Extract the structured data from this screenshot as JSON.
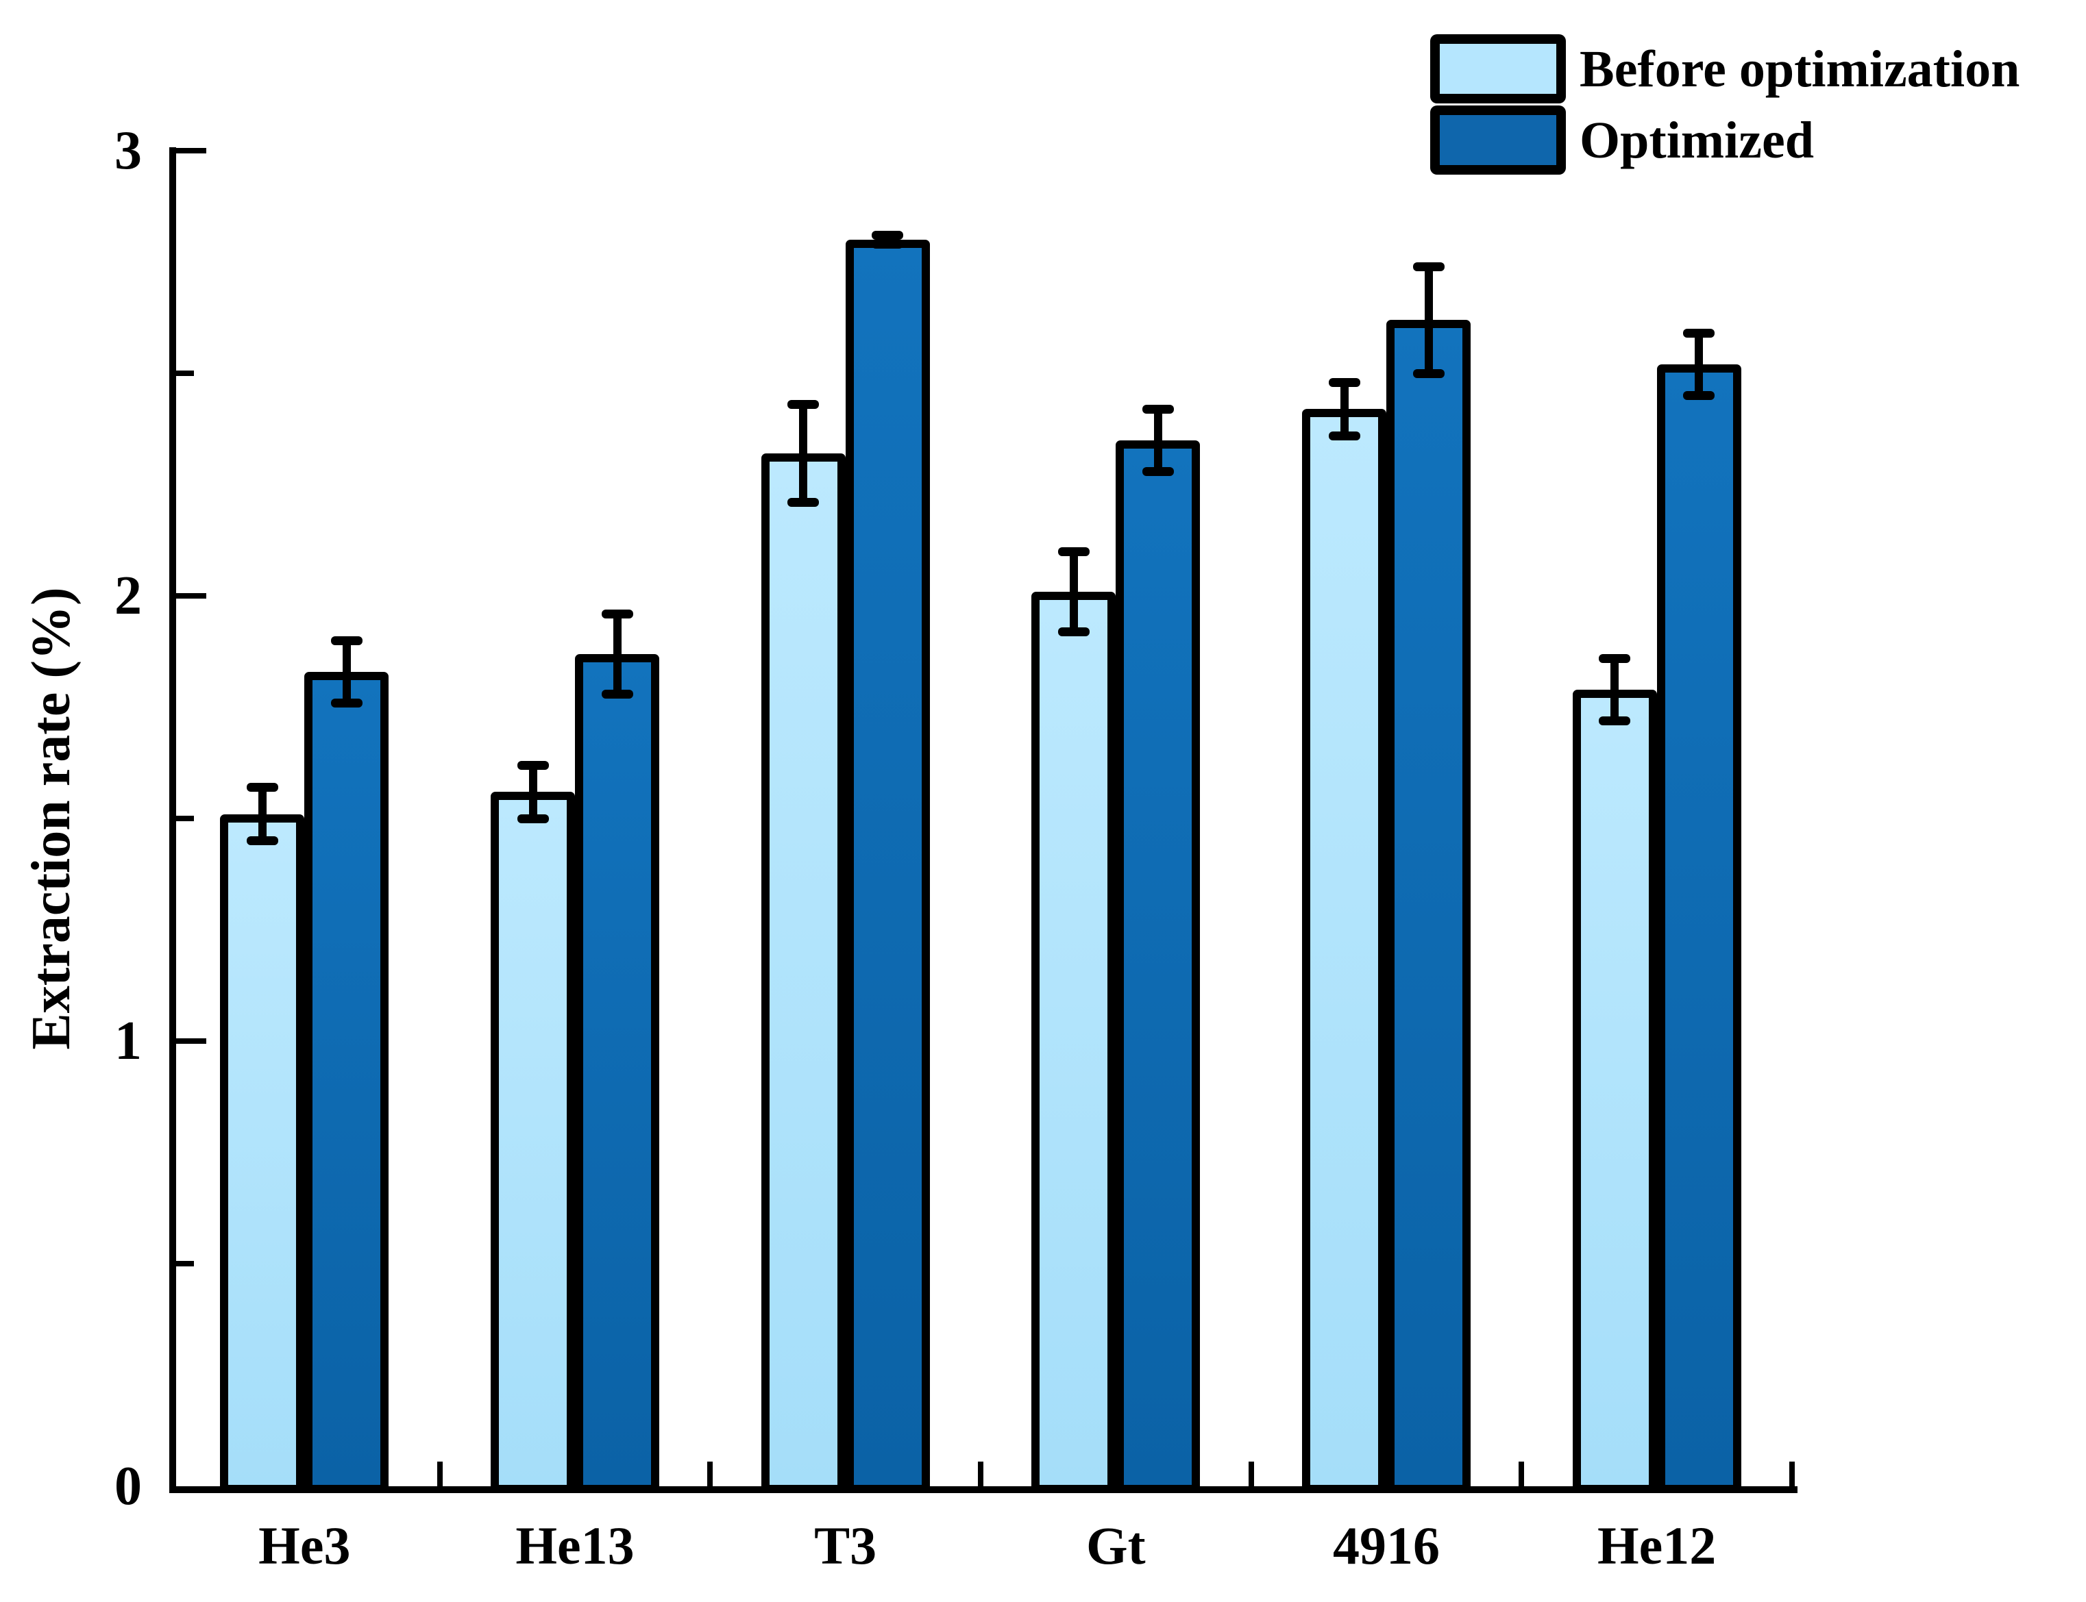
{
  "chart_data": {
    "type": "bar",
    "title": "",
    "xlabel": "",
    "ylabel": "Extraction rate (%)",
    "categories": [
      "He3",
      "He13",
      "T3",
      "Gt",
      "4916",
      "He12"
    ],
    "series": [
      {
        "name": "Before optimization",
        "color": "#B5E6FE",
        "values": [
          1.51,
          1.56,
          2.32,
          2.01,
          2.42,
          1.79
        ],
        "errors": [
          0.06,
          0.06,
          0.11,
          0.09,
          0.06,
          0.07
        ]
      },
      {
        "name": "Optimized",
        "color": "#0F66AC",
        "values": [
          1.83,
          1.87,
          2.8,
          2.35,
          2.62,
          2.52
        ],
        "errors": [
          0.07,
          0.09,
          0.01,
          0.07,
          0.12,
          0.07
        ]
      }
    ],
    "ylim": [
      0,
      3
    ],
    "yticks": [
      0,
      1,
      2,
      3
    ],
    "minor_yticks": [
      0.5,
      1.5,
      2.5
    ],
    "grid": false,
    "legend_position": "top-right",
    "error_bar_color": "#000000",
    "axis_color": "#000000"
  }
}
